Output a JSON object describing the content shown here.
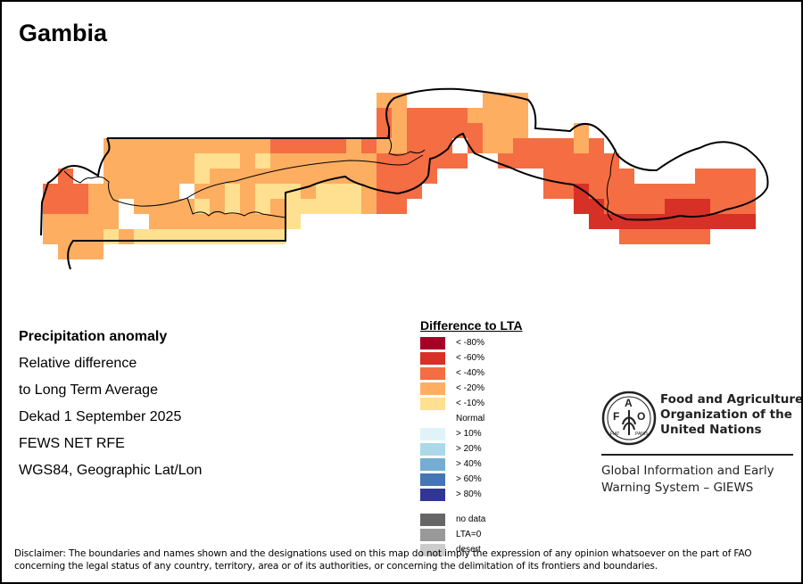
{
  "title": "Gambia",
  "info": {
    "heading": "Precipitation anomaly",
    "lines": [
      "Relative difference",
      "to Long Term Average",
      "Dekad 1 September 2025",
      "FEWS NET RFE",
      "WGS84, Geographic Lat/Lon"
    ]
  },
  "legend": {
    "title": "Difference to LTA",
    "items": [
      {
        "label": "< -80%",
        "color": "#a50026"
      },
      {
        "label": "< -60%",
        "color": "#d73027"
      },
      {
        "label": "< -40%",
        "color": "#f46d43"
      },
      {
        "label": "< -20%",
        "color": "#fdae61"
      },
      {
        "label": "< -10%",
        "color": "#fee090"
      },
      {
        "label": "Normal",
        "color": "#ffffff"
      },
      {
        "label": "> 10%",
        "color": "#e0f3f8"
      },
      {
        "label": "> 20%",
        "color": "#abd9e9"
      },
      {
        "label": "> 40%",
        "color": "#74add1"
      },
      {
        "label": "> 60%",
        "color": "#4575b4"
      },
      {
        "label": "> 80%",
        "color": "#313695"
      }
    ],
    "extra": [
      {
        "label": "no data",
        "color": "#666666"
      },
      {
        "label": "LTA=0",
        "color": "#999999"
      },
      {
        "label": "desert",
        "color": "#cccccc"
      }
    ]
  },
  "fao": {
    "name_lines": [
      "Food and Agriculture",
      "Organization of the",
      "United Nations"
    ],
    "giews_lines": [
      "Global Information and Early",
      "Warning System – GIEWS"
    ],
    "emblem_letters": "F A O FIAT PANIS"
  },
  "disclaimer": [
    "Disclaimer: The boundaries and names shown and the designations used on this map do not imply the expression of any opinion whatsoever on the part of FAO",
    "concerning the legal status of any country, territory, area or of its authorities, or concerning the delimitation of its frontiers and boundaries."
  ],
  "map_grid": {
    "codes": {
      "1": "< -10%",
      "2": "< -20%",
      "3": "< -40%",
      "4": "< -60%",
      "0": "Normal"
    },
    "rows": [
      "..........................................2.22222....................",
      "..........................................32333222..2222...............",
      "....................................................................",
      "......2222222222222333332.32..333333222..................2.........",
      "......22222222222222222222223223333333.............2.............",
      "....3....222211222122222222222233333..............................",
      "....3....22222222122110.0..22222333...................................",
      "..333...222.2222122110.2222..3333......................................",
      "..333..2222222221111112222...33........................................",
      "..2222.22222221111.....................................................",
      "...222122111111111......................................................"
    ]
  }
}
